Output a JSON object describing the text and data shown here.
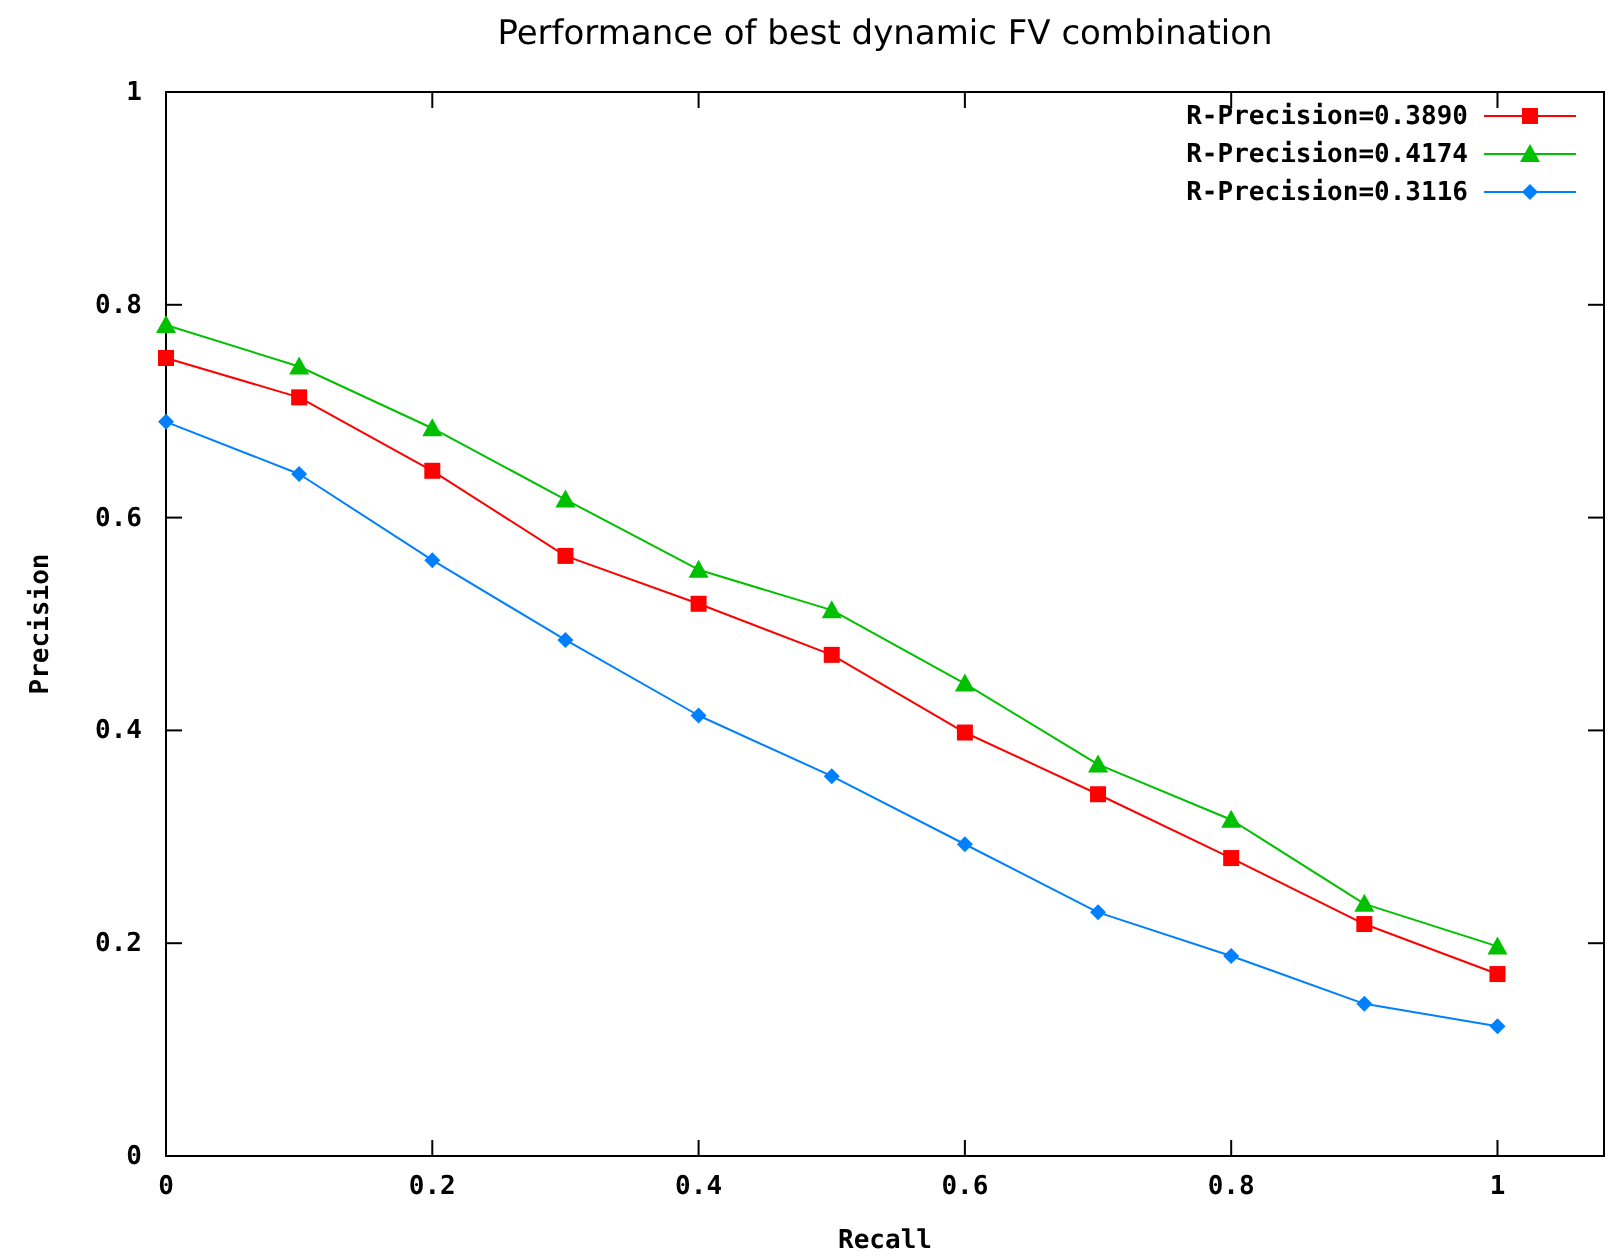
{
  "chart_data": {
    "type": "line",
    "title": "Performance of best dynamic FV combination",
    "xlabel": "Recall",
    "ylabel": "Precision",
    "x": [
      0,
      0.1,
      0.2,
      0.3,
      0.4,
      0.5,
      0.6,
      0.7,
      0.8,
      0.9,
      1
    ],
    "series": [
      {
        "name": "R-Precision=0.3890",
        "color": "#ff0000",
        "marker": "square",
        "values": [
          0.75,
          0.713,
          0.644,
          0.564,
          0.519,
          0.471,
          0.398,
          0.34,
          0.28,
          0.218,
          0.171
        ]
      },
      {
        "name": "R-Precision=0.4174",
        "color": "#00c000",
        "marker": "triangle",
        "values": [
          0.781,
          0.742,
          0.684,
          0.617,
          0.551,
          0.513,
          0.444,
          0.368,
          0.316,
          0.237,
          0.197
        ]
      },
      {
        "name": "R-Precision=0.3116",
        "color": "#0080ff",
        "marker": "diamond",
        "values": [
          0.69,
          0.641,
          0.56,
          0.485,
          0.414,
          0.357,
          0.293,
          0.229,
          0.188,
          0.143,
          0.122
        ]
      }
    ],
    "xlim": [
      0,
      1.08
    ],
    "ylim": [
      0,
      1
    ],
    "xticks": [
      0,
      {
        "value": 0.2,
        "label": "0.2"
      },
      {
        "value": 0.4,
        "label": "0.4"
      },
      {
        "value": 0.6,
        "label": "0.6"
      },
      {
        "value": 0.8,
        "label": "0.8"
      },
      1
    ],
    "yticks": [
      0,
      {
        "value": 0.2,
        "label": "0.2"
      },
      {
        "value": 0.4,
        "label": "0.4"
      },
      {
        "value": 0.6,
        "label": "0.6"
      },
      {
        "value": 0.8,
        "label": "0.8"
      },
      1
    ],
    "legend": "top right",
    "grid": false,
    "line_style": "solid"
  }
}
